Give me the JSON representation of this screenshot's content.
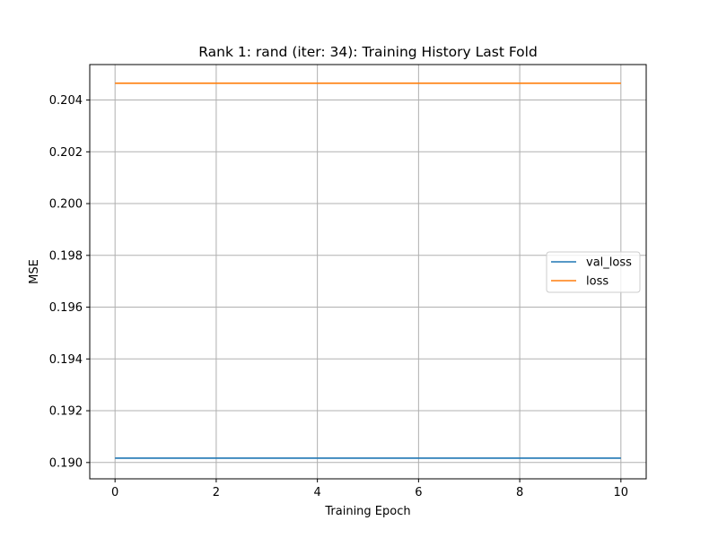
{
  "chart_data": {
    "type": "line",
    "title": "Rank 1: rand (iter: 34): Training History Last Fold",
    "xlabel": "Training Epoch",
    "ylabel": "MSE",
    "xlim": [
      -0.5,
      10.5
    ],
    "ylim": [
      0.18937,
      0.20537
    ],
    "xticks": [
      0,
      2,
      4,
      6,
      8,
      10
    ],
    "xtick_labels": [
      "0",
      "2",
      "4",
      "6",
      "8",
      "10"
    ],
    "yticks": [
      0.19,
      0.192,
      0.194,
      0.196,
      0.198,
      0.2,
      0.202,
      0.204
    ],
    "ytick_labels": [
      "0.190",
      "0.192",
      "0.194",
      "0.196",
      "0.198",
      "0.200",
      "0.202",
      "0.204"
    ],
    "grid": true,
    "legend_position": "center-right",
    "x": [
      0,
      1,
      2,
      3,
      4,
      5,
      6,
      7,
      8,
      9,
      10
    ],
    "series": [
      {
        "name": "val_loss",
        "color": "#1f77b4",
        "values": [
          0.19017,
          0.19017,
          0.19017,
          0.19017,
          0.19017,
          0.19017,
          0.19017,
          0.19017,
          0.19017,
          0.19017,
          0.19017
        ]
      },
      {
        "name": "loss",
        "color": "#ff7f0e",
        "values": [
          0.20465,
          0.20465,
          0.20465,
          0.20465,
          0.20465,
          0.20465,
          0.20465,
          0.20465,
          0.20465,
          0.20465,
          0.20465
        ]
      }
    ]
  }
}
